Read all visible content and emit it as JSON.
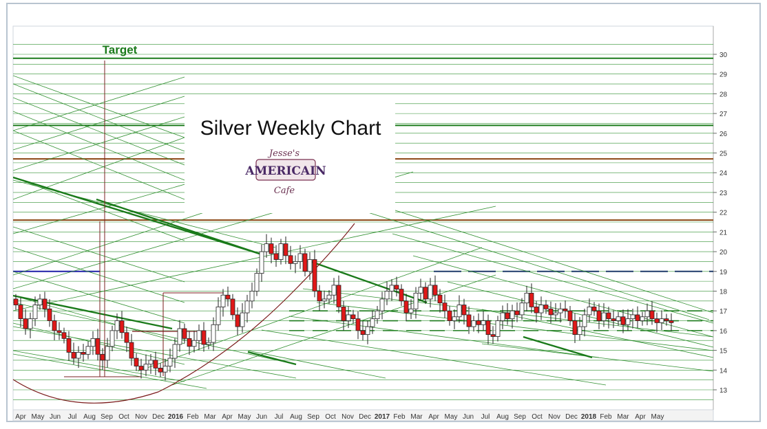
{
  "chart_data": {
    "type": "candlestick",
    "title": "Silver Weekly Chart",
    "annotation": "Target",
    "logo": "Jesse's AMERICAIN Cafe",
    "ylim": [
      12.5,
      30.5
    ],
    "y_ticks": [
      13,
      14,
      15,
      16,
      17,
      18,
      19,
      20,
      21,
      22,
      23,
      24,
      25,
      26,
      27,
      28,
      29,
      30
    ],
    "x_ticks": [
      "Apr",
      "May",
      "Jun",
      "Jul",
      "Aug",
      "Sep",
      "Oct",
      "Nov",
      "Dec",
      "2016",
      "Feb",
      "Mar",
      "Apr",
      "May",
      "Jun",
      "Jul",
      "Aug",
      "Sep",
      "Oct",
      "Nov",
      "Dec",
      "2017",
      "Feb",
      "Mar",
      "Apr",
      "May",
      "Jun",
      "Jul",
      "Aug",
      "Sep",
      "Oct",
      "Nov",
      "Dec",
      "2018",
      "Feb",
      "Mar",
      "Apr",
      "May"
    ],
    "horizontal_levels": [
      {
        "value": 29.8,
        "color": "#1a7a1a"
      },
      {
        "value": 26.4,
        "color": "#1a7a1a"
      },
      {
        "value": 24.7,
        "color": "#8b4513"
      },
      {
        "value": 21.6,
        "color": "#8b4513"
      },
      {
        "value": 19.0,
        "color": "#1f1fa8"
      }
    ],
    "weekly_close": [
      17.3,
      16.6,
      16.1,
      16.6,
      17.3,
      17.6,
      17.1,
      16.5,
      16.0,
      15.9,
      15.6,
      14.9,
      14.6,
      14.9,
      14.8,
      15.2,
      15.6,
      14.8,
      14.5,
      15.2,
      16.0,
      16.5,
      15.9,
      15.4,
      14.6,
      14.2,
      14.0,
      14.3,
      14.5,
      14.1,
      13.9,
      14.2,
      14.6,
      15.3,
      16.1,
      15.6,
      15.2,
      15.5,
      16.0,
      15.3,
      15.4,
      16.3,
      17.2,
      17.8,
      17.6,
      16.8,
      16.2,
      16.9,
      17.5,
      18.0,
      18.9,
      20.0,
      20.4,
      19.9,
      19.6,
      20.4,
      19.8,
      19.4,
      19.5,
      19.9,
      19.0,
      19.6,
      18.0,
      17.5,
      17.6,
      17.8,
      18.3,
      17.2,
      16.5,
      16.8,
      16.6,
      16.0,
      15.8,
      16.2,
      16.6,
      17.0,
      17.6,
      18.0,
      18.3,
      18.1,
      17.5,
      16.9,
      17.1,
      17.9,
      18.2,
      17.6,
      18.3,
      17.8,
      17.4,
      17.0,
      16.5,
      16.7,
      17.3,
      16.8,
      16.2,
      16.5,
      16.3,
      16.5,
      15.8,
      15.7,
      16.5,
      16.9,
      16.6,
      17.0,
      16.8,
      17.4,
      17.9,
      17.2,
      16.9,
      17.3,
      17.1,
      16.8,
      16.9,
      17.1,
      17.0,
      16.5,
      15.8,
      16.2,
      16.8,
      17.2,
      17.0,
      16.5,
      16.9,
      16.6,
      16.5,
      16.7,
      16.3,
      16.6,
      16.8,
      16.5,
      16.7,
      17.0,
      16.6,
      16.4,
      16.6,
      16.5,
      16.4
    ]
  }
}
